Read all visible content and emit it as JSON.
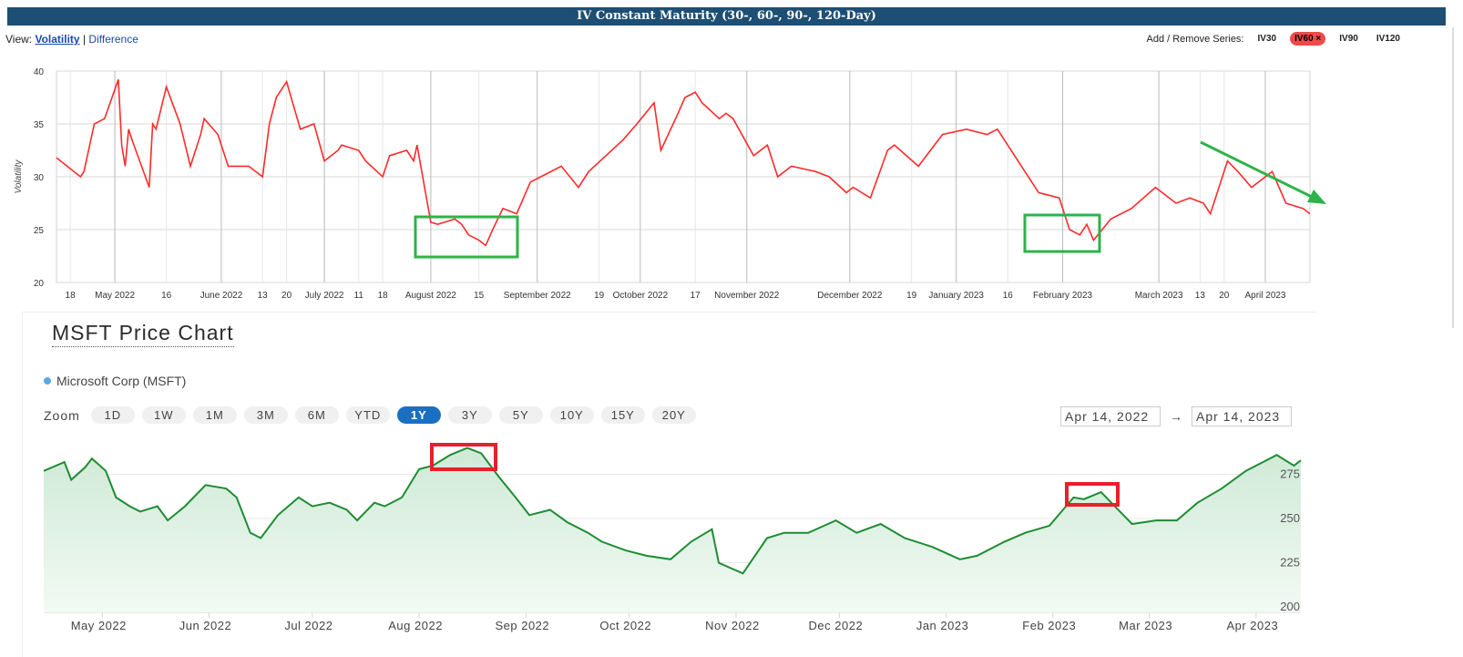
{
  "iv_header": {
    "title": "IV Constant Maturity (30-, 60-, 90-, 120-Day)"
  },
  "view": {
    "label": "View:",
    "volatility": "Volatility",
    "separator": "|",
    "difference": "Difference"
  },
  "series_controls": {
    "label": "Add / Remove Series:",
    "buttons": [
      "IV30",
      "IV60 ×",
      "IV90",
      "IV120"
    ]
  },
  "msft": {
    "title": "MSFT Price Chart",
    "legend": "Microsoft Corp (MSFT)",
    "zoom_label": "Zoom",
    "zoom_buttons": [
      "1D",
      "1W",
      "1M",
      "3M",
      "6M",
      "YTD",
      "1Y",
      "3Y",
      "5Y",
      "10Y",
      "15Y",
      "20Y"
    ],
    "zoom_active": "1Y",
    "range_from": "Apr 14, 2022",
    "range_arrow": "→",
    "range_to": "Apr 14, 2023"
  },
  "colors": {
    "iv_line": "#ff2a2a",
    "price_line": "#1e8c32",
    "price_fill": "#d8efdd",
    "highlight_green": "#2db34a",
    "highlight_red": "#e8202a",
    "trend_arrow": "#2db34a",
    "header_bg": "#1d4e74"
  },
  "chart_data": [
    {
      "type": "line",
      "title": "IV Constant Maturity (30-, 60-, 90-, 120-Day)",
      "ylabel": "Volatility",
      "ylim": [
        20,
        40
      ],
      "yticks": [
        20,
        25,
        30,
        35,
        40
      ],
      "xlim": [
        "2022-04-14",
        "2023-04-14"
      ],
      "x_tick_labels": [
        "18",
        "May 2022",
        "16",
        "June 2022",
        "13",
        "20",
        "July 2022",
        "11",
        "18",
        "August 2022",
        "15",
        "September 2022",
        "19",
        "October 2022",
        "17",
        "November 2022",
        "December 2022",
        "19",
        "January 2023",
        "16",
        "February 2023",
        "March 2023",
        "13",
        "20",
        "April 2023"
      ],
      "x_tick_dates": [
        "2022-04-18",
        "2022-05-01",
        "2022-05-16",
        "2022-06-01",
        "2022-06-13",
        "2022-06-20",
        "2022-07-01",
        "2022-07-11",
        "2022-07-18",
        "2022-08-01",
        "2022-08-15",
        "2022-09-01",
        "2022-09-19",
        "2022-10-01",
        "2022-10-17",
        "2022-11-01",
        "2022-12-01",
        "2022-12-19",
        "2023-01-01",
        "2023-01-16",
        "2023-02-01",
        "2023-03-01",
        "2023-03-13",
        "2023-03-20",
        "2023-04-01"
      ],
      "grid": true,
      "series": [
        {
          "name": "IV60",
          "x": [
            "2022-04-14",
            "2022-04-21",
            "2022-04-22",
            "2022-04-25",
            "2022-04-28",
            "2022-05-02",
            "2022-05-03",
            "2022-05-04",
            "2022-05-05",
            "2022-05-06",
            "2022-05-11",
            "2022-05-12",
            "2022-05-13",
            "2022-05-16",
            "2022-05-20",
            "2022-05-23",
            "2022-05-26",
            "2022-05-27",
            "2022-05-31",
            "2022-06-03",
            "2022-06-09",
            "2022-06-13",
            "2022-06-15",
            "2022-06-17",
            "2022-06-20",
            "2022-06-24",
            "2022-06-28",
            "2022-07-01",
            "2022-07-05",
            "2022-07-06",
            "2022-07-11",
            "2022-07-13",
            "2022-07-18",
            "2022-07-20",
            "2022-07-25",
            "2022-07-27",
            "2022-07-28",
            "2022-08-01",
            "2022-08-03",
            "2022-08-08",
            "2022-08-10",
            "2022-08-12",
            "2022-08-15",
            "2022-08-17",
            "2022-08-19",
            "2022-08-22",
            "2022-08-26",
            "2022-08-30",
            "2022-09-02",
            "2022-09-08",
            "2022-09-13",
            "2022-09-16",
            "2022-09-21",
            "2022-09-26",
            "2022-09-30",
            "2022-10-05",
            "2022-10-07",
            "2022-10-12",
            "2022-10-14",
            "2022-10-17",
            "2022-10-19",
            "2022-10-24",
            "2022-10-26",
            "2022-10-28",
            "2022-11-03",
            "2022-11-07",
            "2022-11-10",
            "2022-11-14",
            "2022-11-21",
            "2022-11-25",
            "2022-11-30",
            "2022-12-02",
            "2022-12-07",
            "2022-12-12",
            "2022-12-14",
            "2022-12-21",
            "2022-12-28",
            "2023-01-04",
            "2023-01-10",
            "2023-01-13",
            "2023-01-20",
            "2023-01-24",
            "2023-01-25",
            "2023-01-31",
            "2023-02-03",
            "2023-02-06",
            "2023-02-08",
            "2023-02-10",
            "2023-02-15",
            "2023-02-21",
            "2023-02-28",
            "2023-03-06",
            "2023-03-10",
            "2023-03-14",
            "2023-03-16",
            "2023-03-21",
            "2023-03-24",
            "2023-03-28",
            "2023-04-03",
            "2023-04-07",
            "2023-04-12",
            "2023-04-14"
          ],
          "values": [
            31.8,
            30.0,
            30.5,
            35.0,
            35.5,
            39.2,
            33.0,
            31.0,
            34.5,
            33.5,
            29.0,
            35.0,
            34.5,
            38.5,
            35.0,
            31.0,
            34.0,
            35.5,
            34.0,
            31.0,
            31.0,
            30.0,
            35.0,
            37.5,
            39.0,
            34.5,
            35.0,
            31.5,
            32.5,
            33.0,
            32.5,
            31.5,
            30.0,
            32.0,
            32.5,
            31.5,
            33.0,
            25.7,
            25.5,
            26.0,
            25.5,
            24.5,
            24.0,
            23.5,
            25.0,
            27.0,
            26.5,
            29.5,
            30.0,
            31.0,
            29.0,
            30.5,
            32.0,
            33.5,
            35.0,
            37.0,
            32.5,
            36.0,
            37.5,
            38.0,
            37.0,
            35.5,
            36.0,
            35.5,
            32.0,
            33.0,
            30.0,
            31.0,
            30.5,
            30.0,
            28.5,
            29.0,
            28.0,
            32.5,
            33.0,
            31.0,
            34.0,
            34.5,
            34.0,
            34.5,
            31.0,
            29.0,
            28.5,
            28.0,
            25.0,
            24.5,
            25.5,
            24.0,
            26.0,
            27.0,
            29.0,
            27.5,
            28.0,
            27.5,
            26.5,
            31.5,
            30.5,
            29.0,
            30.5,
            27.5,
            27.0,
            26.5
          ]
        }
      ],
      "annotations": [
        "green box August 2022",
        "green box February 2023",
        "green downward trend arrow"
      ]
    },
    {
      "type": "area",
      "title": "MSFT Price Chart",
      "series": [
        {
          "name": "Microsoft Corp (MSFT)",
          "x": [
            "2022-04-14",
            "2022-04-20",
            "2022-04-22",
            "2022-04-26",
            "2022-04-28",
            "2022-05-02",
            "2022-05-05",
            "2022-05-09",
            "2022-05-12",
            "2022-05-17",
            "2022-05-20",
            "2022-05-25",
            "2022-05-31",
            "2022-06-06",
            "2022-06-09",
            "2022-06-13",
            "2022-06-16",
            "2022-06-21",
            "2022-06-27",
            "2022-07-01",
            "2022-07-06",
            "2022-07-11",
            "2022-07-14",
            "2022-07-19",
            "2022-07-22",
            "2022-07-27",
            "2022-08-01",
            "2022-08-05",
            "2022-08-10",
            "2022-08-15",
            "2022-08-19",
            "2022-08-24",
            "2022-08-29",
            "2022-09-02",
            "2022-09-08",
            "2022-09-13",
            "2022-09-19",
            "2022-09-23",
            "2022-09-30",
            "2022-10-06",
            "2022-10-13",
            "2022-10-19",
            "2022-10-25",
            "2022-10-27",
            "2022-11-03",
            "2022-11-10",
            "2022-11-15",
            "2022-11-22",
            "2022-11-30",
            "2022-12-06",
            "2022-12-13",
            "2022-12-20",
            "2022-12-28",
            "2023-01-05",
            "2023-01-10",
            "2023-01-18",
            "2023-01-24",
            "2023-01-31",
            "2023-02-07",
            "2023-02-10",
            "2023-02-15",
            "2023-02-21",
            "2023-02-24",
            "2023-03-03",
            "2023-03-09",
            "2023-03-15",
            "2023-03-22",
            "2023-03-29",
            "2023-04-03",
            "2023-04-07",
            "2023-04-12",
            "2023-04-14"
          ],
          "values": [
            280,
            285,
            275,
            282,
            287,
            280,
            265,
            260,
            257,
            260,
            252,
            260,
            272,
            270,
            265,
            245,
            242,
            255,
            265,
            260,
            262,
            258,
            252,
            262,
            260,
            265,
            281,
            283,
            289,
            293,
            290,
            277,
            265,
            255,
            258,
            251,
            245,
            240,
            235,
            232,
            230,
            240,
            247,
            228,
            222,
            242,
            245,
            245,
            252,
            245,
            250,
            242,
            237,
            230,
            232,
            240,
            245,
            249,
            265,
            264,
            268,
            256,
            250,
            252,
            252,
            262,
            270,
            280,
            285,
            289,
            283,
            286
          ]
        }
      ],
      "ylim": [
        200,
        300
      ],
      "yticks": [
        200,
        225,
        250,
        275
      ],
      "xlim": [
        "2022-04-14",
        "2023-04-14"
      ],
      "x_tick_labels": [
        "May 2022",
        "Jun 2022",
        "Jul 2022",
        "Aug 2022",
        "Sep 2022",
        "Oct 2022",
        "Nov 2022",
        "Dec 2022",
        "Jan 2023",
        "Feb 2023",
        "Mar 2023",
        "Apr 2023"
      ],
      "x_tick_dates": [
        "2022-05-01",
        "2022-06-01",
        "2022-07-01",
        "2022-08-01",
        "2022-09-01",
        "2022-10-01",
        "2022-11-01",
        "2022-12-01",
        "2023-01-01",
        "2023-02-01",
        "2023-03-01",
        "2023-04-01"
      ],
      "grid": true,
      "annotations": [
        "red box August 2022 peak",
        "red box February 2023 peak"
      ]
    }
  ]
}
